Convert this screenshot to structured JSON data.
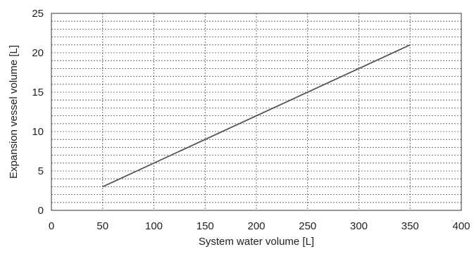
{
  "chart_data": {
    "type": "line",
    "title": "",
    "xlabel": "System water volume [L]",
    "ylabel": "Expansion vessel volume [L]",
    "xlim": [
      0,
      400
    ],
    "ylim": [
      0,
      25
    ],
    "x_ticks": [
      0,
      50,
      100,
      150,
      200,
      250,
      300,
      350,
      400
    ],
    "y_ticks": [
      0,
      5,
      10,
      15,
      20,
      25
    ],
    "y_minor_step": 1,
    "grid": true,
    "grid_style": "dotted",
    "series": [
      {
        "x": [
          50,
          350
        ],
        "y": [
          3,
          21
        ],
        "color": "#555555"
      }
    ]
  }
}
